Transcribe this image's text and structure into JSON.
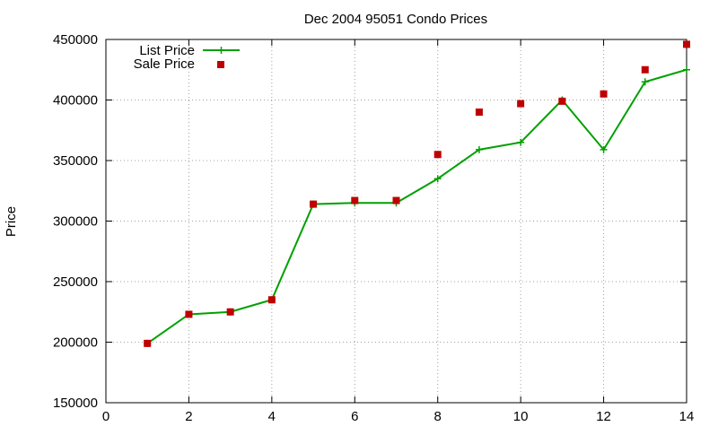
{
  "chart_data": {
    "type": "line",
    "title": "Dec 2004 95051 Condo Prices",
    "xlabel": "",
    "ylabel": "Price",
    "xlim": [
      0,
      14
    ],
    "ylim": [
      150000,
      450000
    ],
    "x_ticks": [
      0,
      2,
      4,
      6,
      8,
      10,
      12,
      14
    ],
    "y_ticks": [
      150000,
      200000,
      250000,
      300000,
      350000,
      400000,
      450000
    ],
    "grid": true,
    "legend_position": "top-left",
    "series": [
      {
        "name": "List Price",
        "style": "line with plus markers",
        "color": "#00a000",
        "points": [
          {
            "x": 1,
            "y": 199000
          },
          {
            "x": 2,
            "y": 223000
          },
          {
            "x": 3,
            "y": 225000
          },
          {
            "x": 4,
            "y": 235000
          },
          {
            "x": 5,
            "y": 314000
          },
          {
            "x": 6,
            "y": 315000
          },
          {
            "x": 7,
            "y": 315000
          },
          {
            "x": 8,
            "y": 335000
          },
          {
            "x": 9,
            "y": 359000
          },
          {
            "x": 10,
            "y": 365000
          },
          {
            "x": 11,
            "y": 400000
          },
          {
            "x": 12,
            "y": 359000
          },
          {
            "x": 13,
            "y": 415000
          },
          {
            "x": 14,
            "y": 425000
          }
        ]
      },
      {
        "name": "Sale Price",
        "style": "square markers",
        "color": "#c00000",
        "points": [
          {
            "x": 1,
            "y": 199000
          },
          {
            "x": 2,
            "y": 223000
          },
          {
            "x": 3,
            "y": 225000
          },
          {
            "x": 4,
            "y": 235000
          },
          {
            "x": 5,
            "y": 314000
          },
          {
            "x": 6,
            "y": 317000
          },
          {
            "x": 7,
            "y": 317000
          },
          {
            "x": 8,
            "y": 355000
          },
          {
            "x": 9,
            "y": 390000
          },
          {
            "x": 10,
            "y": 397000
          },
          {
            "x": 11,
            "y": 399000
          },
          {
            "x": 12,
            "y": 405000
          },
          {
            "x": 13,
            "y": 425000
          },
          {
            "x": 14,
            "y": 446000
          }
        ]
      }
    ]
  }
}
